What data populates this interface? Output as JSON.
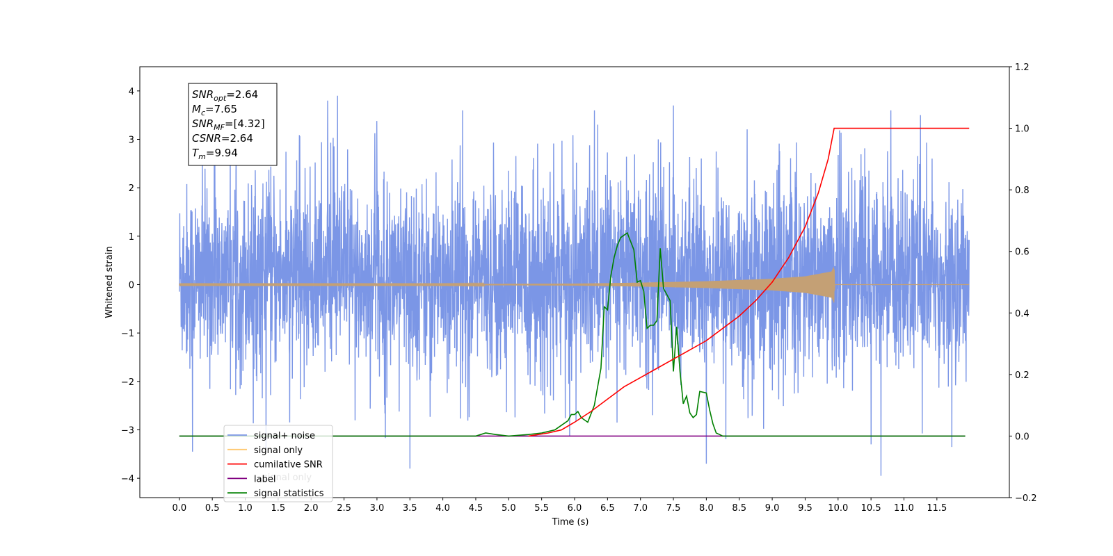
{
  "chart_data": {
    "type": "line",
    "xlabel": "Time (s)",
    "ylabel": "Whitened strain",
    "xlim": [
      -0.6,
      12.6
    ],
    "ylim": [
      -4.4,
      4.5
    ],
    "y2lim": [
      -0.2,
      1.2
    ],
    "x_ticks": [
      "0.0",
      "0.5",
      "1.0",
      "1.5",
      "2.0",
      "2.5",
      "3.0",
      "3.5",
      "4.0",
      "4.5",
      "5.0",
      "5.5",
      "6.0",
      "6.5",
      "7.0",
      "7.5",
      "8.0",
      "8.5",
      "9.0",
      "9.5",
      "10.0",
      "10.5",
      "11.0",
      "11.5"
    ],
    "y_ticks": [
      "4",
      "3",
      "2",
      "1",
      "0",
      "−1",
      "−2",
      "−3",
      "−4"
    ],
    "y2_ticks": [
      "1.2",
      "1.0",
      "0.8",
      "0.6",
      "0.4",
      "0.2",
      "0.0",
      "−0.2"
    ],
    "grid": false,
    "legend_position": "lower-left",
    "legend": [
      {
        "label": "signal+ noise",
        "color": "#7b96e6"
      },
      {
        "label": "signal only",
        "color": "#ffc870"
      },
      {
        "label": "cumilative SNR",
        "color": "#ff0000"
      },
      {
        "label": "label",
        "color": "#800080"
      },
      {
        "label": "signal statistics",
        "color": "#008000"
      }
    ],
    "hidden_legend_text": "signal only",
    "annotation": {
      "lines": [
        {
          "base": "SNR",
          "sub": "opt",
          "rest": "=2.64"
        },
        {
          "base": "M",
          "sub": "c",
          "rest": "=7.65"
        },
        {
          "base": "SNR",
          "sub": "MF",
          "rest": "=[4.32]"
        },
        {
          "base": "CSNR",
          "sub": "",
          "rest": "=2.64"
        },
        {
          "base": "T",
          "sub": "m",
          "rest": "=9.94"
        }
      ]
    },
    "series": [
      {
        "name": "signal+ noise",
        "axis": "left",
        "color": "#7b96e6",
        "x_range": [
          0.0,
          11.99
        ],
        "typical_range": [
          -1.9,
          2.4
        ],
        "extremes": [
          [
            0.2,
            -3.45
          ],
          [
            2.25,
            3.8
          ],
          [
            2.4,
            3.9
          ],
          [
            3.5,
            -3.8
          ],
          [
            4.3,
            3.6
          ],
          [
            6.3,
            3.6
          ],
          [
            7.5,
            3.7
          ],
          [
            8.0,
            -3.7
          ],
          [
            10.5,
            -3.3
          ],
          [
            10.65,
            -3.95
          ],
          [
            10.8,
            3.6
          ],
          [
            11.25,
            3.5
          ]
        ]
      },
      {
        "name": "signal only",
        "axis": "left",
        "color": "#c4a075",
        "x": [
          0.0,
          4.0,
          6.0,
          7.0,
          8.0,
          9.0,
          9.5,
          9.9,
          9.94,
          9.95,
          12.0
        ],
        "amplitude": [
          0.01,
          0.01,
          0.02,
          0.04,
          0.07,
          0.12,
          0.17,
          0.27,
          0.38,
          0.0,
          0.0
        ]
      },
      {
        "name": "cumilative SNR",
        "axis": "right",
        "color": "#ff0000",
        "x": [
          5.3,
          5.6,
          5.8,
          6.0,
          6.25,
          6.5,
          6.75,
          7.0,
          7.25,
          7.5,
          7.75,
          8.0,
          8.25,
          8.5,
          8.75,
          9.0,
          9.25,
          9.5,
          9.7,
          9.85,
          9.94,
          10.5,
          11.0,
          11.5,
          11.99
        ],
        "values": [
          0.0,
          0.01,
          0.02,
          0.045,
          0.08,
          0.12,
          0.16,
          0.19,
          0.22,
          0.25,
          0.28,
          0.31,
          0.35,
          0.39,
          0.44,
          0.5,
          0.58,
          0.68,
          0.79,
          0.9,
          1.0,
          1.0,
          1.0,
          1.0,
          1.0
        ]
      },
      {
        "name": "label",
        "axis": "right",
        "color": "#800080",
        "x": [
          0.0,
          11.93
        ],
        "values": [
          0.0,
          0.0
        ]
      },
      {
        "name": "signal statistics",
        "axis": "right",
        "color": "#008000",
        "x": [
          0.0,
          4.5,
          4.65,
          4.8,
          5.0,
          5.3,
          5.5,
          5.7,
          5.9,
          5.95,
          6.0,
          6.05,
          6.1,
          6.2,
          6.3,
          6.4,
          6.45,
          6.5,
          6.55,
          6.6,
          6.65,
          6.7,
          6.8,
          6.9,
          6.95,
          7.0,
          7.05,
          7.1,
          7.15,
          7.2,
          7.25,
          7.3,
          7.35,
          7.4,
          7.45,
          7.5,
          7.55,
          7.6,
          7.65,
          7.7,
          7.75,
          7.8,
          7.85,
          7.9,
          8.0,
          8.05,
          8.1,
          8.15,
          8.2,
          8.25,
          8.3,
          8.4,
          8.5,
          8.7,
          9.0,
          11.93
        ],
        "values": [
          0.0,
          0.0,
          0.01,
          0.005,
          0.0,
          0.005,
          0.01,
          0.02,
          0.05,
          0.07,
          0.07,
          0.08,
          0.06,
          0.045,
          0.1,
          0.22,
          0.42,
          0.41,
          0.52,
          0.58,
          0.62,
          0.645,
          0.66,
          0.605,
          0.5,
          0.505,
          0.47,
          0.35,
          0.36,
          0.36,
          0.375,
          0.61,
          0.48,
          0.46,
          0.44,
          0.21,
          0.355,
          0.21,
          0.105,
          0.13,
          0.075,
          0.06,
          0.07,
          0.145,
          0.14,
          0.085,
          0.04,
          0.01,
          0.005,
          0.0,
          0.0,
          0.0,
          0.0,
          0.0,
          0.0,
          0.0
        ]
      }
    ]
  }
}
